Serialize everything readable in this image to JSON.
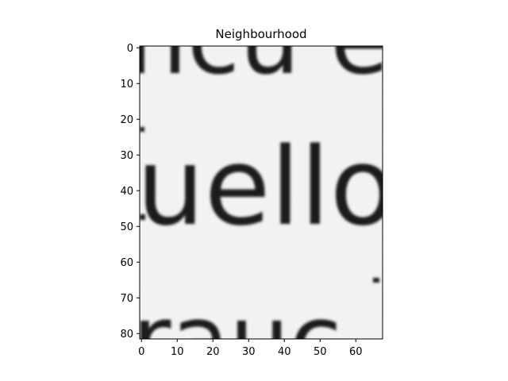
{
  "figure": {
    "title": "Neighbourhood"
  },
  "image": {
    "description": "grayscale crop of printed text",
    "colormap": "gray",
    "image_width": 68,
    "image_height": 82,
    "text_rows": [
      {
        "glyphs": "ncu  e"
      },
      {
        "glyphs": "uello"
      },
      {
        "glyphs": "rauc"
      }
    ]
  },
  "axes": {
    "x_ticks": [
      "0",
      "10",
      "20",
      "30",
      "40",
      "50",
      "60"
    ],
    "y_ticks": [
      "0",
      "10",
      "20",
      "30",
      "40",
      "50",
      "60",
      "70",
      "80"
    ],
    "xlim": [
      -0.5,
      67.5
    ],
    "ylim": [
      81.5,
      -0.5
    ]
  }
}
